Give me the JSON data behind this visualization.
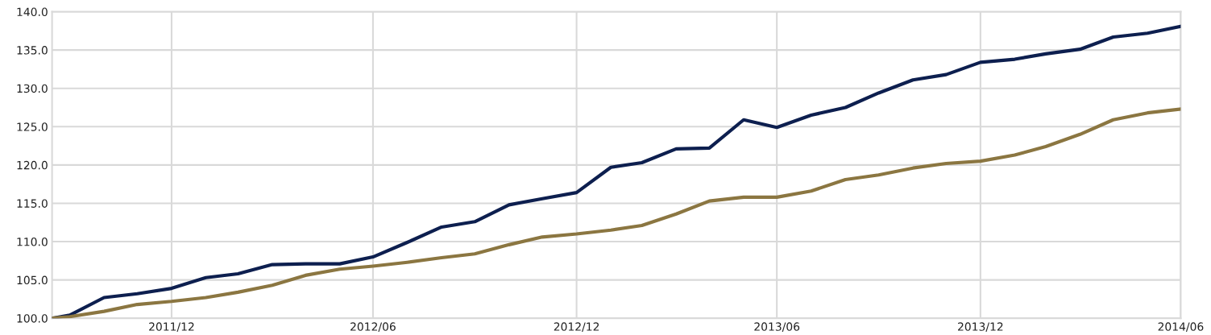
{
  "chart_data": {
    "type": "line",
    "x": [
      "2011-09-14",
      "2011-09-30",
      "2011-10-31",
      "2011-11-30",
      "2011-12-31",
      "2012-01-31",
      "2012-02-29",
      "2012-03-31",
      "2012-04-30",
      "2012-05-31",
      "2012-06-30",
      "2012-07-31",
      "2012-08-31",
      "2012-09-30",
      "2012-10-31",
      "2012-11-30",
      "2012-12-31",
      "2013-01-31",
      "2013-02-28",
      "2013-03-31",
      "2013-04-30",
      "2013-05-31",
      "2013-06-30",
      "2013-07-31",
      "2013-08-31",
      "2013-09-30",
      "2013-10-31",
      "2013-11-30",
      "2013-12-31",
      "2014-01-31",
      "2014-02-28",
      "2014-03-31",
      "2014-04-30",
      "2014-05-31",
      "2014-06-30"
    ],
    "series": [
      {
        "color": "#0d1f4f",
        "values": [
          100.0,
          100.4,
          102.7,
          103.2,
          103.9,
          105.3,
          105.8,
          107.0,
          107.1,
          107.1,
          108.0,
          109.9,
          111.9,
          112.6,
          114.8,
          115.6,
          116.4,
          119.7,
          120.3,
          122.1,
          122.2,
          125.9,
          124.9,
          126.5,
          127.5,
          129.4,
          131.1,
          131.8,
          133.4,
          133.8,
          134.5,
          135.1,
          136.7,
          137.2,
          138.1
        ]
      },
      {
        "color": "#8b7641",
        "values": [
          100.0,
          100.2,
          100.9,
          101.8,
          102.2,
          102.7,
          103.4,
          104.3,
          105.6,
          106.4,
          106.8,
          107.3,
          107.9,
          108.4,
          109.6,
          110.6,
          111.0,
          111.5,
          112.1,
          113.6,
          115.3,
          115.8,
          115.8,
          116.6,
          118.1,
          118.7,
          119.6,
          120.2,
          120.5,
          121.3,
          122.4,
          124.0,
          125.9,
          126.8,
          127.3
        ]
      }
    ],
    "xlim": [
      "2011-09-14",
      "2014-06-30"
    ],
    "xticks": [
      {
        "value": "2011-12-31",
        "label": "2011/12"
      },
      {
        "value": "2012-06-30",
        "label": "2012/06"
      },
      {
        "value": "2012-12-31",
        "label": "2012/12"
      },
      {
        "value": "2013-06-30",
        "label": "2013/06"
      },
      {
        "value": "2013-12-31",
        "label": "2013/12"
      },
      {
        "value": "2014-06-30",
        "label": "2014/06"
      }
    ],
    "ylim": [
      100,
      140
    ],
    "yticks": [
      {
        "value": 100,
        "label": "100.0"
      },
      {
        "value": 105,
        "label": "105.0"
      },
      {
        "value": 110,
        "label": "110.0"
      },
      {
        "value": 115,
        "label": "115.0"
      },
      {
        "value": 120,
        "label": "120.0"
      },
      {
        "value": 125,
        "label": "125.0"
      },
      {
        "value": 130,
        "label": "130.0"
      },
      {
        "value": 135,
        "label": "135.0"
      },
      {
        "value": 140,
        "label": "140.0"
      }
    ],
    "grid": true,
    "marker": "none",
    "line_style": "solid"
  }
}
